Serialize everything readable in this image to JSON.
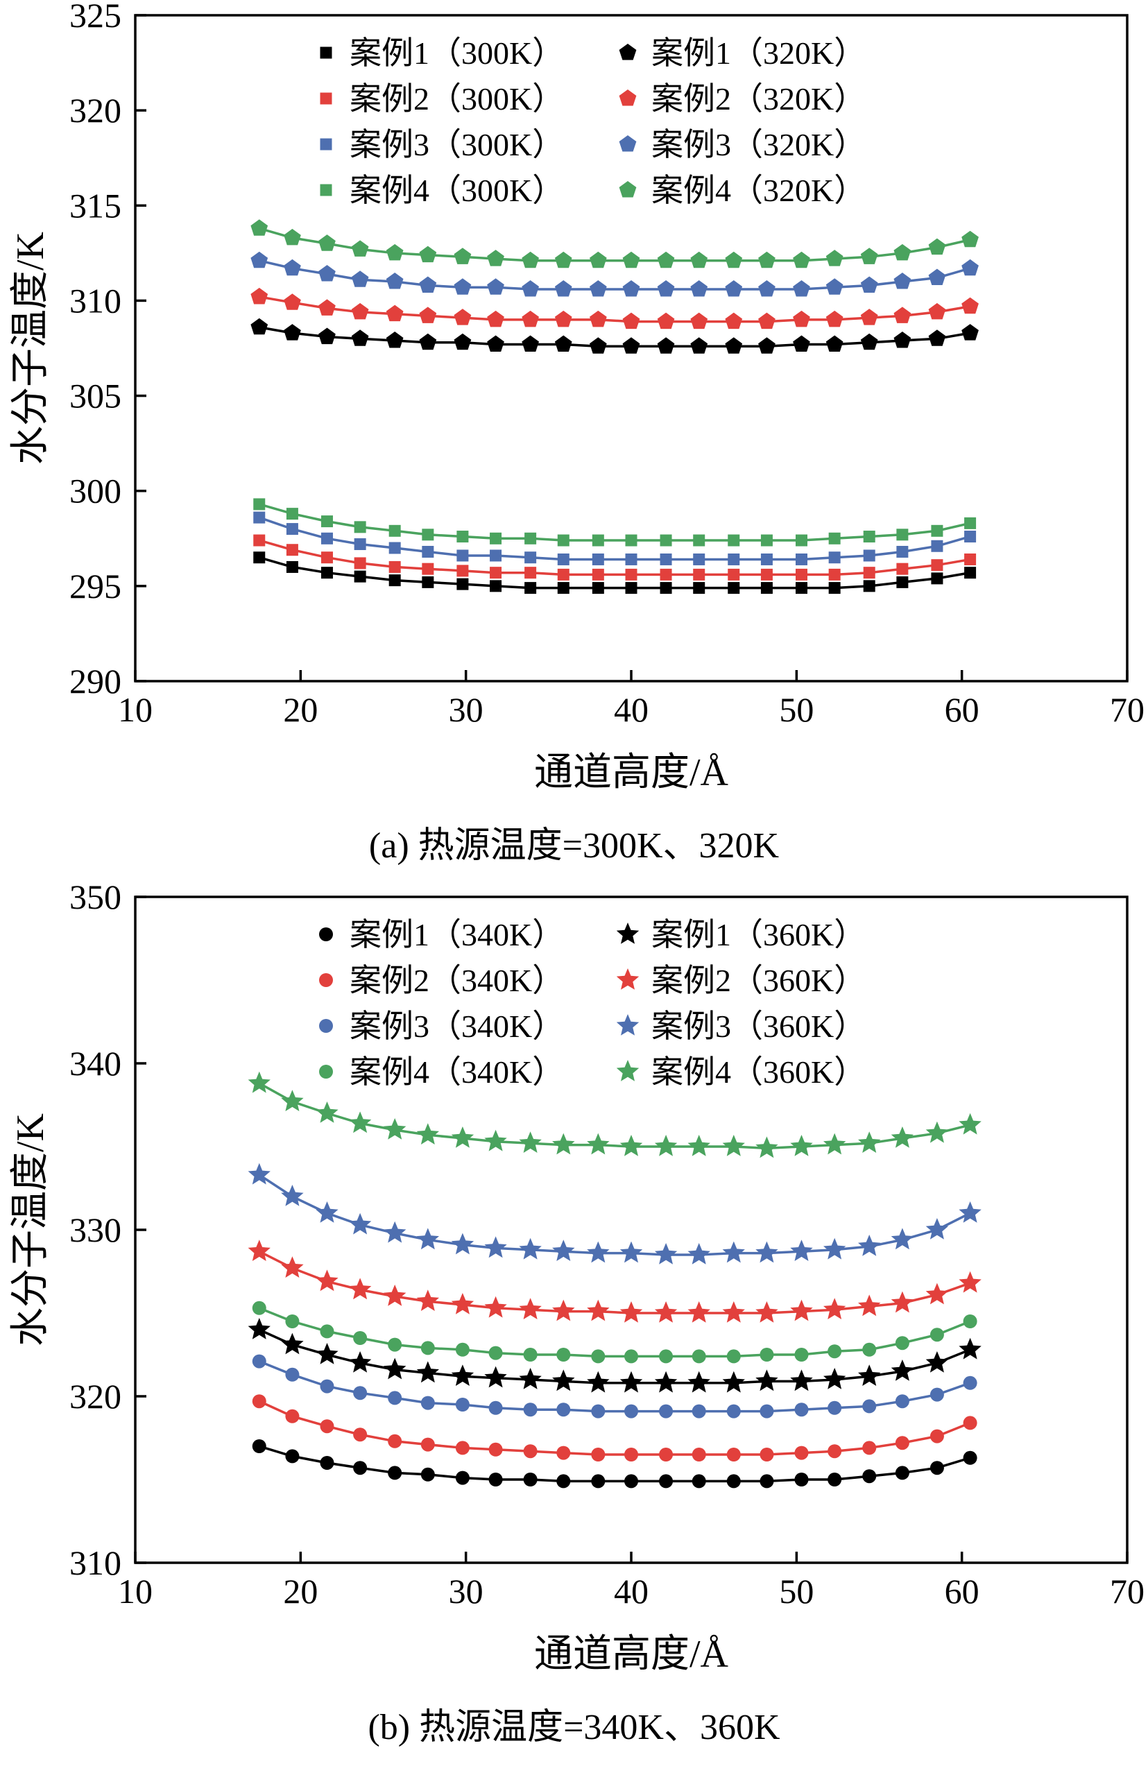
{
  "colors": {
    "black": "#000000",
    "red": "#e2403c",
    "blue": "#4e6fb0",
    "green": "#4aa35e",
    "axis": "#000000",
    "background": "#ffffff"
  },
  "chart_data": [
    {
      "type": "line",
      "caption": "(a) 热源温度=300K、320K",
      "xlabel": "通道高度/Å",
      "ylabel": "水分子温度/K",
      "xlim": [
        10,
        70
      ],
      "ylim": [
        290,
        325
      ],
      "xticks": [
        10,
        20,
        30,
        40,
        50,
        60,
        70
      ],
      "yticks": [
        290,
        295,
        300,
        305,
        310,
        315,
        320,
        325
      ],
      "grid": false,
      "legend_position": "top-center, two columns (300K squares left, 320K pentagons right)",
      "x": [
        17.5,
        19.5,
        21.6,
        23.6,
        25.7,
        27.7,
        29.8,
        31.8,
        33.9,
        35.9,
        38.0,
        40.0,
        42.1,
        44.1,
        46.2,
        48.2,
        50.3,
        52.3,
        54.4,
        56.4,
        58.5,
        60.5
      ],
      "series": [
        {
          "name": "案例1（300K）",
          "marker": "square",
          "color": "black",
          "values": [
            296.5,
            296.0,
            295.7,
            295.5,
            295.3,
            295.2,
            295.1,
            295.0,
            294.9,
            294.9,
            294.9,
            294.9,
            294.9,
            294.9,
            294.9,
            294.9,
            294.9,
            294.9,
            295.0,
            295.2,
            295.4,
            295.7
          ]
        },
        {
          "name": "案例2（300K）",
          "marker": "square",
          "color": "red",
          "values": [
            297.4,
            296.9,
            296.5,
            296.2,
            296.0,
            295.9,
            295.8,
            295.7,
            295.7,
            295.6,
            295.6,
            295.6,
            295.6,
            295.6,
            295.6,
            295.6,
            295.6,
            295.6,
            295.7,
            295.9,
            296.1,
            296.4
          ]
        },
        {
          "name": "案例3（300K）",
          "marker": "square",
          "color": "blue",
          "values": [
            298.6,
            298.0,
            297.5,
            297.2,
            297.0,
            296.8,
            296.6,
            296.6,
            296.5,
            296.4,
            296.4,
            296.4,
            296.4,
            296.4,
            296.4,
            296.4,
            296.4,
            296.5,
            296.6,
            296.8,
            297.1,
            297.6
          ]
        },
        {
          "name": "案例4（300K）",
          "marker": "square",
          "color": "green",
          "values": [
            299.3,
            298.8,
            298.4,
            298.1,
            297.9,
            297.7,
            297.6,
            297.5,
            297.5,
            297.4,
            297.4,
            297.4,
            297.4,
            297.4,
            297.4,
            297.4,
            297.4,
            297.5,
            297.6,
            297.7,
            297.9,
            298.3
          ]
        },
        {
          "name": "案例1（320K）",
          "marker": "pentagon",
          "color": "black",
          "values": [
            308.6,
            308.3,
            308.1,
            308.0,
            307.9,
            307.8,
            307.8,
            307.7,
            307.7,
            307.7,
            307.6,
            307.6,
            307.6,
            307.6,
            307.6,
            307.6,
            307.7,
            307.7,
            307.8,
            307.9,
            308.0,
            308.3
          ]
        },
        {
          "name": "案例2（320K）",
          "marker": "pentagon",
          "color": "red",
          "values": [
            310.2,
            309.9,
            309.6,
            309.4,
            309.3,
            309.2,
            309.1,
            309.0,
            309.0,
            309.0,
            309.0,
            308.9,
            308.9,
            308.9,
            308.9,
            308.9,
            309.0,
            309.0,
            309.1,
            309.2,
            309.4,
            309.7
          ]
        },
        {
          "name": "案例3（320K）",
          "marker": "pentagon",
          "color": "blue",
          "values": [
            312.1,
            311.7,
            311.4,
            311.1,
            311.0,
            310.8,
            310.7,
            310.7,
            310.6,
            310.6,
            310.6,
            310.6,
            310.6,
            310.6,
            310.6,
            310.6,
            310.6,
            310.7,
            310.8,
            311.0,
            311.2,
            311.7
          ]
        },
        {
          "name": "案例4（320K）",
          "marker": "pentagon",
          "color": "green",
          "values": [
            313.8,
            313.3,
            313.0,
            312.7,
            312.5,
            312.4,
            312.3,
            312.2,
            312.1,
            312.1,
            312.1,
            312.1,
            312.1,
            312.1,
            312.1,
            312.1,
            312.1,
            312.2,
            312.3,
            312.5,
            312.8,
            313.2
          ]
        }
      ]
    },
    {
      "type": "line",
      "caption": "(b) 热源温度=340K、360K",
      "xlabel": "通道高度/Å",
      "ylabel": "水分子温度/K",
      "xlim": [
        10,
        70
      ],
      "ylim": [
        310,
        350
      ],
      "xticks": [
        10,
        20,
        30,
        40,
        50,
        60,
        70
      ],
      "yticks": [
        310,
        320,
        330,
        340,
        350
      ],
      "grid": false,
      "legend_position": "top-center, two columns (340K circles left, 360K stars right)",
      "x": [
        17.5,
        19.5,
        21.6,
        23.6,
        25.7,
        27.7,
        29.8,
        31.8,
        33.9,
        35.9,
        38.0,
        40.0,
        42.1,
        44.1,
        46.2,
        48.2,
        50.3,
        52.3,
        54.4,
        56.4,
        58.5,
        60.5
      ],
      "series": [
        {
          "name": "案例1（340K）",
          "marker": "circle",
          "color": "black",
          "values": [
            317.0,
            316.4,
            316.0,
            315.7,
            315.4,
            315.3,
            315.1,
            315.0,
            315.0,
            314.9,
            314.9,
            314.9,
            314.9,
            314.9,
            314.9,
            314.9,
            315.0,
            315.0,
            315.2,
            315.4,
            315.7,
            316.3
          ]
        },
        {
          "name": "案例2（340K）",
          "marker": "circle",
          "color": "red",
          "values": [
            319.7,
            318.8,
            318.2,
            317.7,
            317.3,
            317.1,
            316.9,
            316.8,
            316.7,
            316.6,
            316.5,
            316.5,
            316.5,
            316.5,
            316.5,
            316.5,
            316.6,
            316.7,
            316.9,
            317.2,
            317.6,
            318.4
          ]
        },
        {
          "name": "案例3（340K）",
          "marker": "circle",
          "color": "blue",
          "values": [
            322.1,
            321.3,
            320.6,
            320.2,
            319.9,
            319.6,
            319.5,
            319.3,
            319.2,
            319.2,
            319.1,
            319.1,
            319.1,
            319.1,
            319.1,
            319.1,
            319.2,
            319.3,
            319.4,
            319.7,
            320.1,
            320.8
          ]
        },
        {
          "name": "案例4（340K）",
          "marker": "circle",
          "color": "green",
          "values": [
            325.3,
            324.5,
            323.9,
            323.5,
            323.1,
            322.9,
            322.8,
            322.6,
            322.5,
            322.5,
            322.4,
            322.4,
            322.4,
            322.4,
            322.4,
            322.5,
            322.5,
            322.7,
            322.8,
            323.2,
            323.7,
            324.5
          ]
        },
        {
          "name": "案例1（360K）",
          "marker": "star",
          "color": "black",
          "values": [
            324.0,
            323.1,
            322.5,
            322.0,
            321.6,
            321.4,
            321.2,
            321.1,
            321.0,
            320.9,
            320.8,
            320.8,
            320.8,
            320.8,
            320.8,
            320.9,
            320.9,
            321.0,
            321.2,
            321.5,
            322.0,
            322.8
          ]
        },
        {
          "name": "案例2（360K）",
          "marker": "star",
          "color": "red",
          "values": [
            328.7,
            327.7,
            326.9,
            326.4,
            326.0,
            325.7,
            325.5,
            325.3,
            325.2,
            325.1,
            325.1,
            325.0,
            325.0,
            325.0,
            325.0,
            325.0,
            325.1,
            325.2,
            325.4,
            325.6,
            326.1,
            326.8
          ]
        },
        {
          "name": "案例3（360K）",
          "marker": "star",
          "color": "blue",
          "values": [
            333.3,
            332.0,
            331.0,
            330.3,
            329.8,
            329.4,
            329.1,
            328.9,
            328.8,
            328.7,
            328.6,
            328.6,
            328.5,
            328.5,
            328.6,
            328.6,
            328.7,
            328.8,
            329.0,
            329.4,
            330.0,
            331.0
          ]
        },
        {
          "name": "案例4（360K）",
          "marker": "star",
          "color": "green",
          "values": [
            338.8,
            337.7,
            337.0,
            336.4,
            336.0,
            335.7,
            335.5,
            335.3,
            335.2,
            335.1,
            335.1,
            335.0,
            335.0,
            335.0,
            335.0,
            334.9,
            335.0,
            335.1,
            335.2,
            335.5,
            335.8,
            336.3
          ]
        }
      ]
    }
  ]
}
